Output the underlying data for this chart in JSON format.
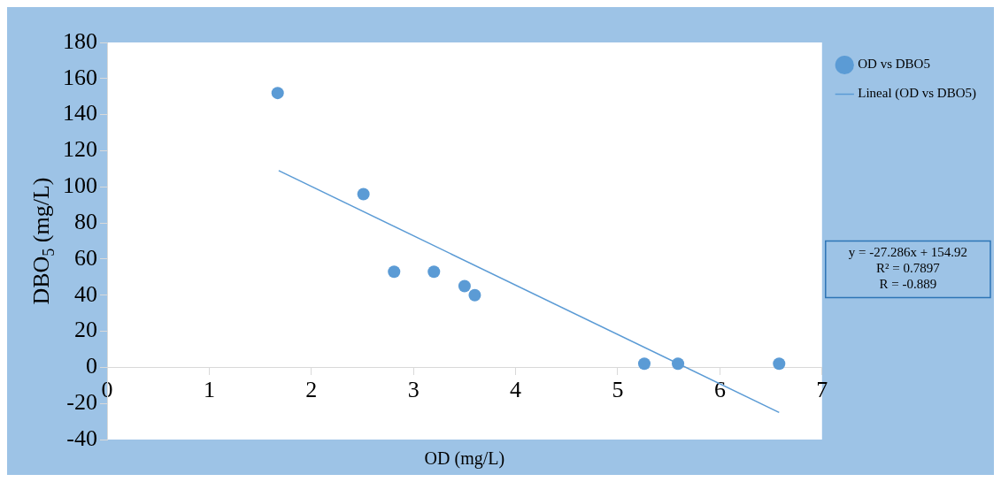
{
  "chart_data": {
    "type": "scatter",
    "xlabel": "OD (mg/L)",
    "ylabel": "DBO$_{5}$ (mg/L)",
    "xlim": [
      0,
      7
    ],
    "xticks": [
      0,
      1,
      2,
      3,
      4,
      5,
      6,
      7
    ],
    "ylim": [
      -40,
      180
    ],
    "yticks": [
      -40,
      -20,
      0,
      20,
      40,
      60,
      80,
      100,
      120,
      140,
      160,
      180
    ],
    "grid": false,
    "legend": "right",
    "marker": "circle",
    "series": [
      {
        "name": "OD vs DBO5",
        "color": "#5b9bd5",
        "x": [
          1.67,
          2.51,
          2.81,
          3.2,
          3.5,
          3.6,
          5.26,
          5.59,
          6.58
        ],
        "values": [
          152,
          96,
          53,
          53,
          45,
          40,
          2,
          2,
          2
        ]
      },
      {
        "name": "Lineal (OD vs DBO5)",
        "type": "line",
        "color": "#5b9bd5",
        "line_style": "solid",
        "marker": "none",
        "x": [
          1.68,
          6.58
        ],
        "values": [
          109,
          -25
        ]
      }
    ],
    "annotations": [
      "y = -27.286x + 154.92",
      "R² = 0.7897",
      "R = -0.889"
    ]
  }
}
